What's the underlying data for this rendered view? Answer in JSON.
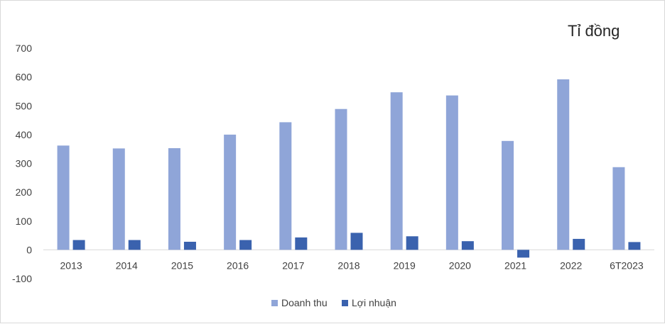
{
  "chart_data": {
    "type": "bar",
    "unit_label": "Tỉ đồng",
    "categories": [
      "2013",
      "2014",
      "2015",
      "2016",
      "2017",
      "2018",
      "2019",
      "2020",
      "2021",
      "2022",
      "6T2023"
    ],
    "series": [
      {
        "name": "Doanh thu",
        "color": "#8fa5d8",
        "values": [
          362,
          352,
          353,
          400,
          443,
          489,
          547,
          536,
          378,
          592,
          287
        ]
      },
      {
        "name": "Lợi nhuận",
        "color": "#3a62ae",
        "values": [
          34,
          34,
          28,
          34,
          43,
          59,
          47,
          30,
          -27,
          38,
          27
        ]
      }
    ],
    "ylim": [
      -100,
      700
    ],
    "yticks": [
      "-100",
      "0",
      "100",
      "200",
      "300",
      "400",
      "500",
      "600",
      "700"
    ],
    "grid": false,
    "legend_position": "bottom"
  }
}
